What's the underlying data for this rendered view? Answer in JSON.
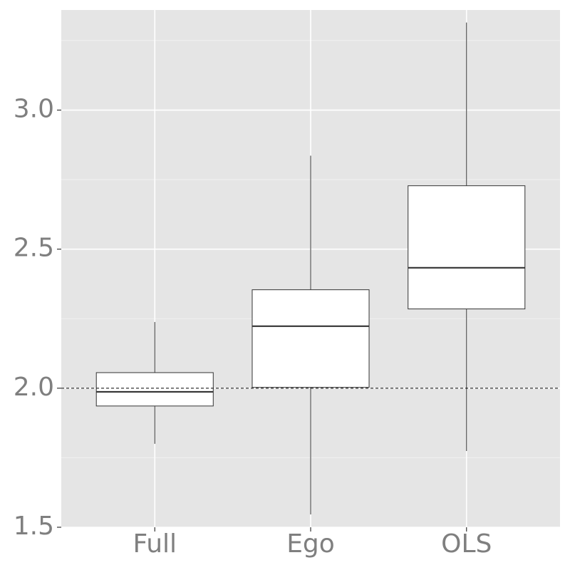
{
  "chart_data": {
    "type": "box",
    "categories": [
      "Full",
      "Ego",
      "OLS"
    ],
    "whisker_low": [
      1.8,
      1.546,
      1.774
    ],
    "q1": [
      1.936,
      2.003,
      2.285
    ],
    "median": [
      1.987,
      2.223,
      2.433
    ],
    "q3": [
      2.056,
      2.354,
      2.728
    ],
    "whisker_high": [
      2.238,
      2.836,
      3.315
    ],
    "box_fill": "#ffffff",
    "line_color": "#333333",
    "ylim": [
      1.5,
      3.36
    ],
    "yticks": [
      {
        "value": 1.5,
        "label": "1.5"
      },
      {
        "value": 2,
        "label": "2.0"
      },
      {
        "value": 2.5,
        "label": "2.5"
      },
      {
        "value": 3,
        "label": "3.0"
      }
    ],
    "minor_yticks": [
      1.75,
      2.25,
      2.75,
      3.25
    ],
    "reference_line": 2,
    "grid": true,
    "panel_color": "#e5e5e5"
  }
}
